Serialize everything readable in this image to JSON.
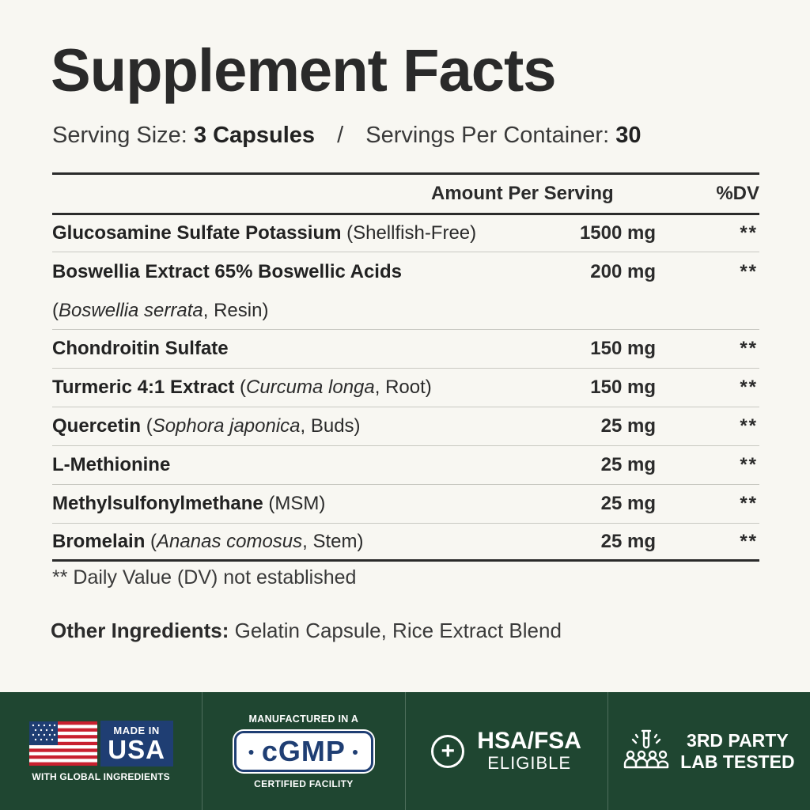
{
  "title": "Supplement Facts",
  "serving": {
    "size_label": "Serving Size:",
    "size_value": "3 Capsules",
    "separator": "/",
    "per_container_label": "Servings Per Container:",
    "per_container_value": "30"
  },
  "table": {
    "header_amount": "Amount Per Serving",
    "header_dv": "%DV",
    "rows": [
      {
        "name": "Glucosamine Sulfate Potassium",
        "detail": "(Shellfish-Free)",
        "amount": "1500 mg",
        "dv": "**"
      },
      {
        "name": "Boswellia Extract 65% Boswellic Acids",
        "detail_open": "(",
        "detail_italic": "Boswellia serrata",
        "detail_close": ", Resin)",
        "amount": "200 mg",
        "dv": "**"
      },
      {
        "name": "Chondroitin Sulfate",
        "amount": "150 mg",
        "dv": "**"
      },
      {
        "name": "Turmeric 4:1 Extract",
        "detail_open": "(",
        "detail_italic": "Curcuma longa",
        "detail_close": ", Root)",
        "amount": "150 mg",
        "dv": "**"
      },
      {
        "name": "Quercetin",
        "detail_open": "(",
        "detail_italic": "Sophora japonica",
        "detail_close": ", Buds)",
        "amount": "25 mg",
        "dv": "**"
      },
      {
        "name": "L-Methionine",
        "amount": "25 mg",
        "dv": "**"
      },
      {
        "name": "Methylsulfonylmethane",
        "detail": "(MSM)",
        "amount": "25 mg",
        "dv": "**"
      },
      {
        "name": "Bromelain",
        "detail_open": "(",
        "detail_italic": "Ananas comosus",
        "detail_close": ", Stem)",
        "amount": "25 mg",
        "dv": "**"
      }
    ]
  },
  "footnote": "** Daily Value (DV) not established",
  "other_ingredients": {
    "label": "Other Ingredients:",
    "value": "Gelatin Capsule, Rice Extract Blend"
  },
  "badges": {
    "usa": {
      "made_in": "MADE IN",
      "country": "USA",
      "sub": "WITH GLOBAL INGREDIENTS"
    },
    "cgmp": {
      "top": "MANUFACTURED IN A",
      "mark": "cGMP",
      "bottom": "CERTIFIED FACILITY"
    },
    "hsa": {
      "icon": "plus-circle-icon",
      "title": "HSA/FSA",
      "sub": "ELIGIBLE"
    },
    "lab": {
      "icon": "lab-people-icon",
      "line1": "3RD PARTY",
      "line2": "LAB TESTED"
    }
  },
  "colors": {
    "background": "#f8f7f2",
    "text": "#2b2b2b",
    "badge_bar": "#1f4631",
    "badge_navy": "#1f3e73",
    "flag_red": "#c8202f"
  }
}
